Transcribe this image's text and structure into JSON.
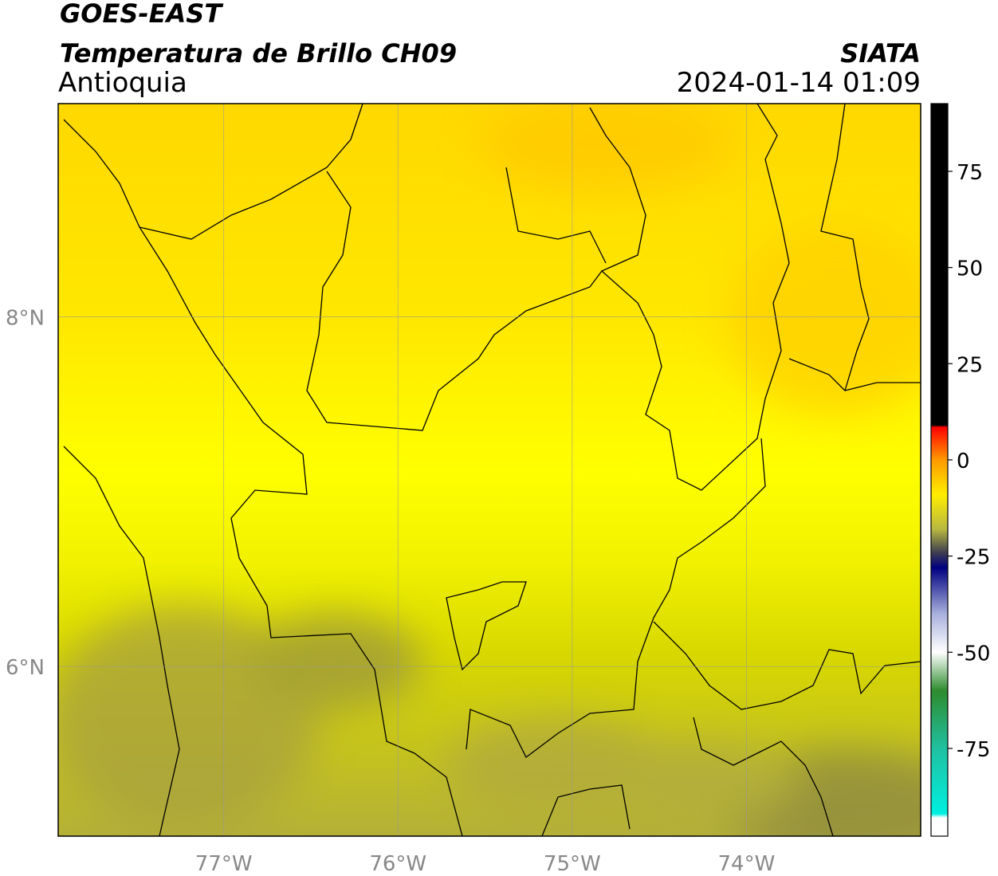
{
  "header": {
    "title": "GOES-EAST",
    "subtitle": "Temperatura de Brillo CH09",
    "region": "Antioquia",
    "source": "SIATA",
    "datetime": "2024-01-14 01:09"
  },
  "map": {
    "xlim": [
      -77.95,
      -73.0
    ],
    "ylim": [
      5.03,
      9.22
    ],
    "xticks": [
      {
        "value": -77,
        "label": "77°W"
      },
      {
        "value": -76,
        "label": "76°W"
      },
      {
        "value": -75,
        "label": "75°W"
      },
      {
        "value": -74,
        "label": "74°W"
      }
    ],
    "yticks": [
      {
        "value": 8,
        "label": "8°N"
      },
      {
        "value": 6,
        "label": "6°N"
      }
    ],
    "grid": true
  },
  "colorbar": {
    "clim": [
      -97.8,
      92.6
    ],
    "ticks": [
      75,
      50,
      25,
      0,
      -25,
      -50,
      -75
    ],
    "colormap": [
      {
        "value": 92.6,
        "color": "#000000"
      },
      {
        "value": 9,
        "color": "#000000"
      },
      {
        "value": 8.5,
        "color": "#ff0000"
      },
      {
        "value": 0,
        "color": "#ff9900"
      },
      {
        "value": -9,
        "color": "#ffee00"
      },
      {
        "value": -18,
        "color": "#b8b840"
      },
      {
        "value": -24,
        "color": "#404050"
      },
      {
        "value": -28,
        "color": "#000080"
      },
      {
        "value": -40,
        "color": "#a8b0dc"
      },
      {
        "value": -50,
        "color": "#ffffff"
      },
      {
        "value": -60,
        "color": "#2e8b2e"
      },
      {
        "value": -75,
        "color": "#20c0a0"
      },
      {
        "value": -92,
        "color": "#00f0e0"
      },
      {
        "value": -93,
        "color": "#ffffff"
      },
      {
        "value": -97.8,
        "color": "#ffffff"
      }
    ]
  }
}
